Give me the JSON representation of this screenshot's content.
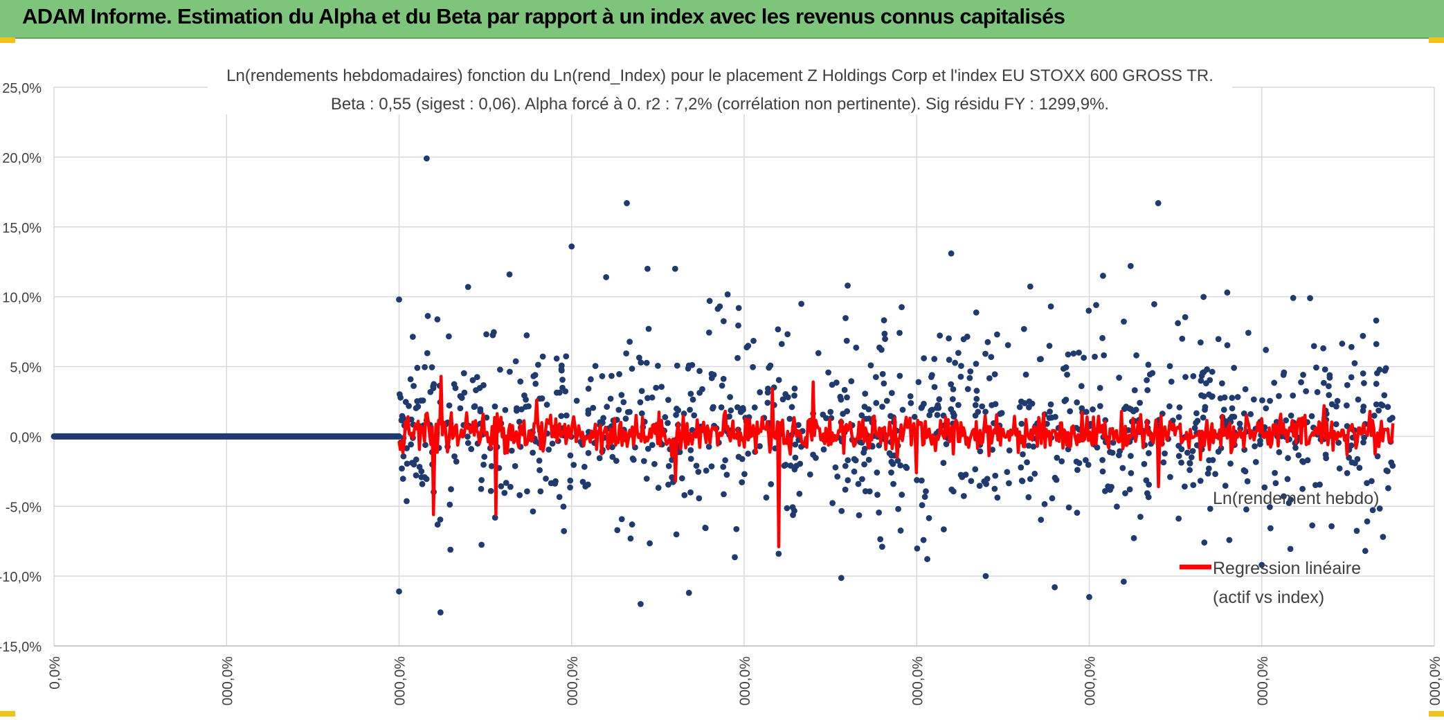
{
  "banner": {
    "title": "ADAM Informe. Estimation du Alpha et du Beta par rapport à un index avec les revenus connus capitalisés"
  },
  "colors": {
    "banner": "#7ec57c",
    "scatter": "#1f3a6e",
    "regression": "#ff0000",
    "grid": "#d9d9d9",
    "corner_accent": "#f2c21b"
  },
  "chart_data": {
    "type": "scatter",
    "title": "Ln(rendements hebdomadaires) fonction du Ln(rend_Index) pour le placement Z Holdings Corp et l'index EU STOXX 600 GROSS TR.",
    "subtitle": "Beta : 0,55 (sigest : 0,06). Alpha forcé à 0. r2 : 7,2% (corrélation non pertinente). Sig résidu FY : 1299,9%.",
    "ylim": [
      -15,
      25
    ],
    "y_ticks": [
      "25,0%",
      "20,0%",
      "15,0%",
      "10,0%",
      "5,0%",
      "0,0%",
      "-5,0%",
      "-10,0%",
      "-15,0%"
    ],
    "x_ticks": [
      "0,0%",
      "000,0%",
      "000,0%",
      "000,0%",
      "000,0%",
      "000,0%",
      "000,0%",
      "000,0%",
      "000,0%"
    ],
    "grid": true,
    "legend_position": "right",
    "legend": [
      {
        "name": "Ln(rendement hebdo)",
        "marker": "circle"
      },
      {
        "name_line1": "Regression linéaire",
        "name_line2": "(actif vs index)",
        "marker": "line"
      }
    ],
    "series": [
      {
        "name": "Ln(rendement hebdo)",
        "kind": "points",
        "note": "weekly log-returns, roughly between -12.6% and 19.9%",
        "points": [
          [
            0.5,
            -11.1
          ],
          [
            0.5,
            9.8
          ],
          [
            0.54,
            19.9
          ],
          [
            0.56,
            -12.6
          ],
          [
            0.6,
            10.7
          ],
          [
            0.66,
            11.6
          ],
          [
            0.75,
            13.6
          ],
          [
            0.8,
            11.4
          ],
          [
            0.83,
            16.7
          ],
          [
            0.85,
            -12
          ],
          [
            0.86,
            12
          ],
          [
            0.9,
            12
          ],
          [
            0.92,
            -11.2
          ],
          [
            0.95,
            9.7
          ],
          [
            1.05,
            -8.4
          ],
          [
            1.15,
            10.8
          ],
          [
            1.2,
            -7.9
          ],
          [
            1.3,
            13.1
          ],
          [
            1.35,
            -10
          ],
          [
            1.45,
            -10.8
          ],
          [
            1.5,
            -11.5
          ],
          [
            1.52,
            11.5
          ],
          [
            1.56,
            12.2
          ],
          [
            1.6,
            16.7
          ],
          [
            1.55,
            -10.4
          ],
          [
            1.7,
            10.3
          ],
          [
            1.75,
            -9.2
          ],
          [
            1.82,
            9.9
          ],
          [
            1.88,
            6.4
          ],
          [
            1.9,
            -8.2
          ]
        ]
      },
      {
        "name": "Regression linéaire (actif vs index)",
        "kind": "line",
        "note": "fitted values, roughly between -7.9% and 4.3%",
        "peaks": [
          [
            0.55,
            -5.6
          ],
          [
            0.56,
            4.3
          ],
          [
            0.64,
            -5.6
          ],
          [
            0.7,
            2.6
          ],
          [
            0.9,
            -3.2
          ],
          [
            1.04,
            3.4
          ],
          [
            1.05,
            -7.9
          ],
          [
            1.1,
            3.9
          ],
          [
            1.25,
            -2.6
          ],
          [
            1.6,
            -3.6
          ],
          [
            1.84,
            2.2
          ]
        ]
      }
    ],
    "baseline_segment": {
      "from_x": 0,
      "to_x": 0.5,
      "y": 0
    }
  }
}
